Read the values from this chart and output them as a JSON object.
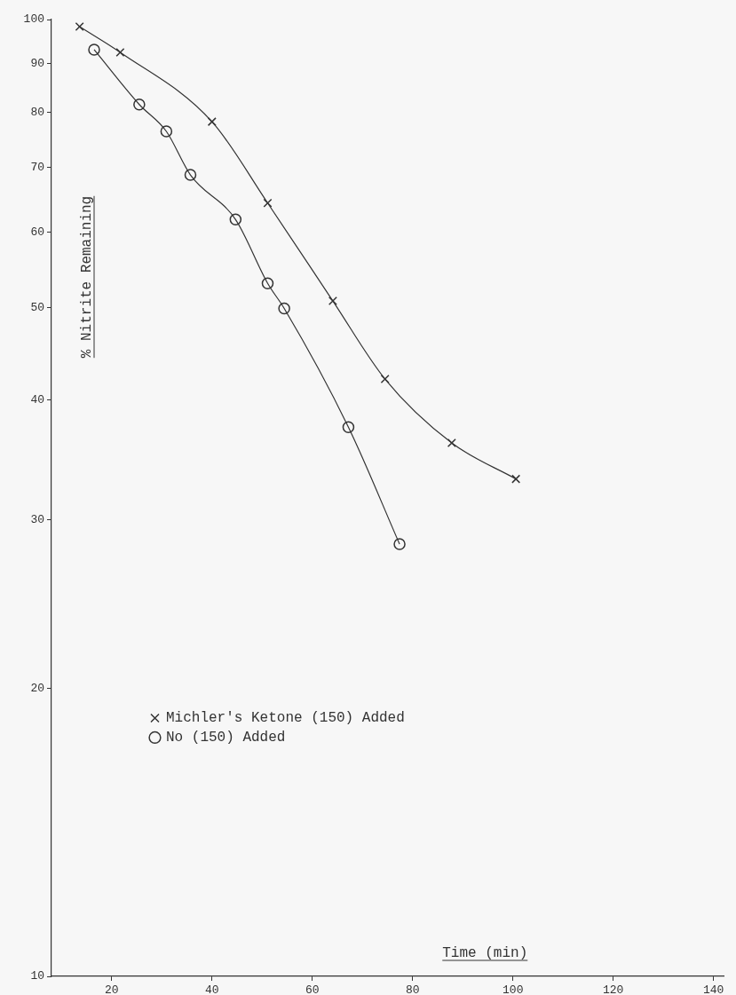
{
  "chart_data": {
    "type": "line",
    "xlabel": "Time (min)",
    "ylabel": "% Nitrite Remaining",
    "log": "y",
    "grid": false,
    "legend": "center left",
    "line_style": "solid",
    "xlim": [
      8,
      142
    ],
    "xticks": [
      20,
      40,
      60,
      80,
      100,
      120,
      140
    ],
    "ylim": [
      10,
      100
    ],
    "yticks": [
      10,
      20,
      30,
      40,
      50,
      60,
      70,
      80,
      90,
      100
    ],
    "series": [
      {
        "name": "Michler's Ketone (150) Added",
        "color": "#333333",
        "marker": "cross",
        "x": [
          13.6,
          21.7,
          40.0,
          51.1,
          64.1,
          74.5,
          87.8,
          100.6
        ],
        "values": [
          98.3,
          92.4,
          78.2,
          64.3,
          50.8,
          42.1,
          36.1,
          33.1
        ]
      },
      {
        "name": "No (150) Added",
        "color": "#333333",
        "marker": "circle",
        "x": [
          16.5,
          25.5,
          30.9,
          35.7,
          44.7,
          51.1,
          54.4,
          67.2,
          77.4
        ],
        "values": [
          93.0,
          81.5,
          76.4,
          68.8,
          61.8,
          53.0,
          49.9,
          37.5,
          28.3
        ]
      }
    ]
  }
}
